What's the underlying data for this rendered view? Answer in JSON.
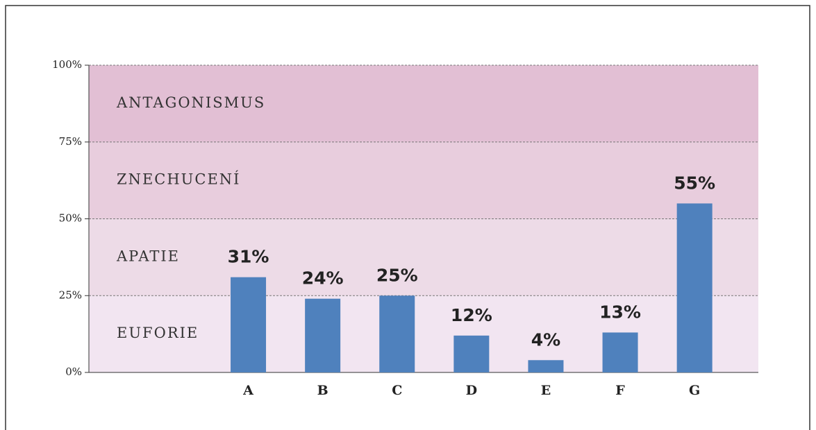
{
  "chart_data": {
    "type": "bar",
    "categories": [
      "A",
      "B",
      "C",
      "D",
      "E",
      "F",
      "G"
    ],
    "values": [
      31,
      24,
      25,
      12,
      4,
      13,
      55
    ],
    "value_labels": [
      "31%",
      "24%",
      "25%",
      "12%",
      "4%",
      "13%",
      "55%"
    ],
    "color": "#4f81bd",
    "ylim": [
      0,
      100
    ],
    "yticks": [
      {
        "value": 0,
        "label": "0%"
      },
      {
        "value": 25,
        "label": "25%"
      },
      {
        "value": 50,
        "label": "50%"
      },
      {
        "value": 75,
        "label": "75%"
      },
      {
        "value": 100,
        "label": "100%"
      }
    ],
    "grid": true,
    "bands": [
      {
        "name": "EUFORIE",
        "range": [
          0,
          25
        ],
        "color": "#f2e5f1"
      },
      {
        "name": "APATIE",
        "range": [
          25,
          50
        ],
        "color": "#eddbe7"
      },
      {
        "name": "ZNECHUCENÍ",
        "range": [
          50,
          75
        ],
        "color": "#e8cddd"
      },
      {
        "name": "ANTAGONISMUS",
        "range": [
          75,
          100
        ],
        "color": "#e2bfd4"
      }
    ]
  }
}
